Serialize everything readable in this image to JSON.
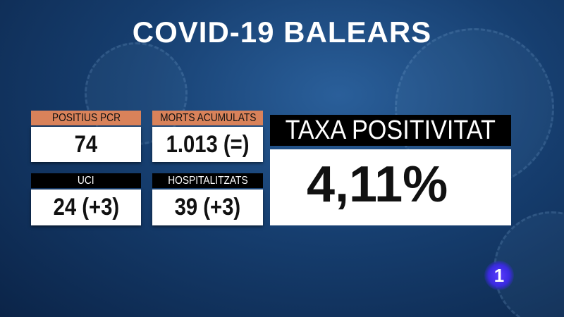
{
  "title": "COVID-19  BALEARS",
  "stats": [
    {
      "label": "POSITIUS PCR",
      "value": "74",
      "label_color": "#d9825a"
    },
    {
      "label": "MORTS ACUMULATS",
      "value": "1.013 (=)",
      "label_color": "#d9825a"
    },
    {
      "label": "UCI",
      "value": "24 (+3)",
      "label_color": "#000000"
    },
    {
      "label": "HOSPITALITZATS",
      "value": "39 (+3)",
      "label_color": "#000000"
    }
  ],
  "positivity": {
    "label": "TAXA POSITIVITAT",
    "value": "4,11%"
  },
  "channel_logo": "1"
}
